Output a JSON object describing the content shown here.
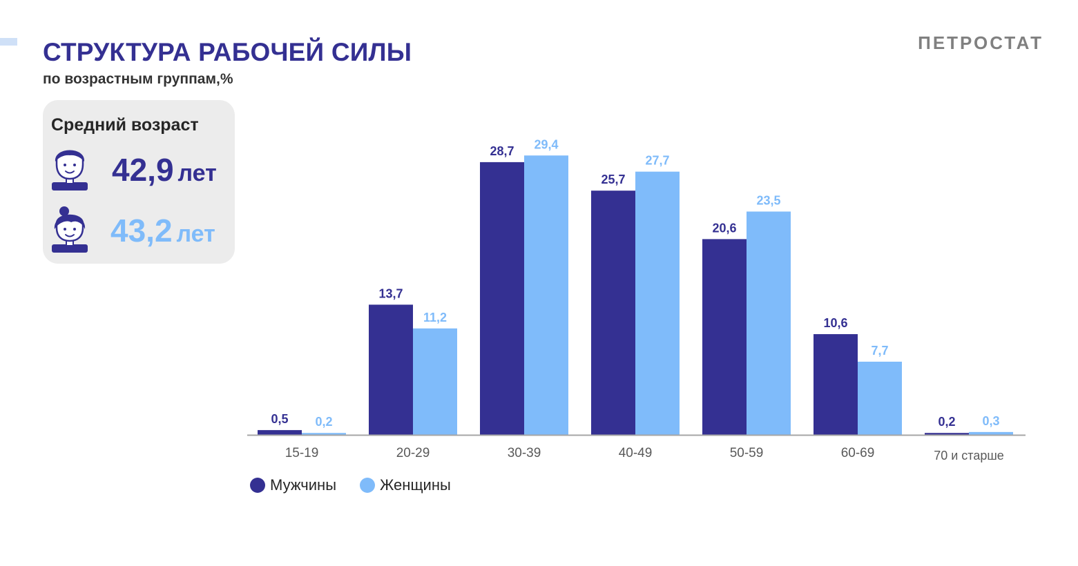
{
  "header": {
    "title": "СТРУКТУРА РАБОЧЕЙ СИЛЫ",
    "subtitle": "по возрастным группам,%",
    "brand": "ПЕТРОСТАТ"
  },
  "average_age": {
    "title": "Средний возраст",
    "male": {
      "value": "42,9",
      "unit": "лет",
      "icon": "male-avatar-icon"
    },
    "female": {
      "value": "43,2",
      "unit": "лет",
      "icon": "female-avatar-icon"
    }
  },
  "colors": {
    "male": "#343092",
    "female": "#7fbbfa",
    "axis": "#a6a6a6",
    "tick_label": "#595959"
  },
  "chart_data": {
    "type": "bar",
    "categories": [
      "15-19",
      "20-29",
      "30-39",
      "40-49",
      "50-59",
      "60-69",
      "70 и старше"
    ],
    "series": [
      {
        "name": "Мужчины",
        "values": [
          0.5,
          13.7,
          28.7,
          25.7,
          20.6,
          10.6,
          0.2
        ],
        "labels": [
          "0,5",
          "13,7",
          "28,7",
          "25,7",
          "20,6",
          "10,6",
          "0,2"
        ]
      },
      {
        "name": "Женщины",
        "values": [
          0.2,
          11.2,
          29.4,
          27.7,
          23.5,
          7.7,
          0.3
        ],
        "labels": [
          "0,2",
          "11,2",
          "29,4",
          "27,7",
          "23,5",
          "7,7",
          "0,3"
        ]
      }
    ],
    "ylim": [
      0,
      30
    ],
    "grid": false,
    "legend": "bottom-left"
  }
}
